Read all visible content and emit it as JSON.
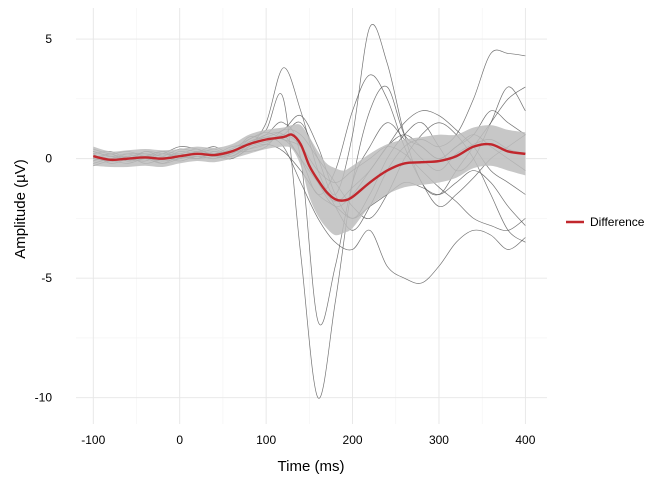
{
  "chart_data": {
    "type": "line",
    "xlabel": "Time (ms)",
    "ylabel": "Amplitude (µV)",
    "xlim": [
      -120,
      425
    ],
    "ylim": [
      -11.1,
      6.3
    ],
    "x_ticks": [
      -100,
      0,
      100,
      200,
      300,
      400
    ],
    "x_tick_labels": [
      "-100",
      "0",
      "100",
      "200",
      "300",
      "400"
    ],
    "y_ticks": [
      5,
      0,
      -5,
      -10
    ],
    "y_tick_labels": [
      "5",
      "0",
      "-5",
      "-10"
    ],
    "grid": true,
    "legend_position": "right",
    "colors": {
      "mean": "#c1272d",
      "ribbon": "#bdbdbd",
      "individual": "#5a5a5a",
      "grid_major": "#e6e6e6",
      "grid_minor": "#f3f3f3"
    },
    "series": [
      {
        "name": "Difference",
        "x": [
          -100,
          -80,
          -60,
          -40,
          -20,
          0,
          20,
          40,
          60,
          80,
          100,
          120,
          130,
          140,
          150,
          160,
          170,
          180,
          190,
          200,
          220,
          240,
          260,
          280,
          300,
          320,
          340,
          360,
          380,
          400
        ],
        "values": [
          0.1,
          -0.05,
          0.0,
          0.05,
          0.0,
          0.1,
          0.2,
          0.15,
          0.3,
          0.6,
          0.8,
          0.9,
          1.0,
          0.6,
          -0.3,
          -0.9,
          -1.4,
          -1.7,
          -1.75,
          -1.6,
          -1.0,
          -0.5,
          -0.2,
          -0.15,
          -0.1,
          0.1,
          0.5,
          0.6,
          0.3,
          0.2
        ],
        "ci_lower": [
          -0.3,
          -0.35,
          -0.35,
          -0.3,
          -0.35,
          -0.2,
          -0.1,
          -0.15,
          0.0,
          0.2,
          0.4,
          0.5,
          0.4,
          -0.3,
          -1.6,
          -2.4,
          -2.9,
          -3.2,
          -3.1,
          -2.9,
          -2.0,
          -1.5,
          -1.2,
          -1.1,
          -1.0,
          -0.8,
          -0.4,
          -0.3,
          -0.5,
          -0.7
        ],
        "ci_upper": [
          0.5,
          0.3,
          0.35,
          0.4,
          0.35,
          0.4,
          0.5,
          0.45,
          0.6,
          1.0,
          1.2,
          1.3,
          1.4,
          1.4,
          0.9,
          0.3,
          -0.2,
          -0.4,
          -0.5,
          -0.3,
          0.2,
          0.6,
          0.8,
          0.9,
          1.0,
          1.0,
          1.3,
          1.4,
          1.2,
          1.1
        ]
      }
    ],
    "individual_x": [
      -100,
      -80,
      -60,
      -40,
      -20,
      0,
      20,
      40,
      60,
      80,
      100,
      120,
      140,
      160,
      180,
      200,
      220,
      240,
      260,
      280,
      300,
      320,
      340,
      360,
      380,
      400
    ],
    "individual_series": [
      [
        0.3,
        0.1,
        0.2,
        0.0,
        0.3,
        0.2,
        0.4,
        0.1,
        0.2,
        0.8,
        1.2,
        2.5,
        -4.0,
        -10.0,
        -6.0,
        -1.0,
        2.0,
        3.0,
        1.0,
        0.5,
        0.0,
        0.5,
        1.0,
        2.0,
        1.5,
        1.0
      ],
      [
        0.0,
        0.2,
        -0.1,
        0.3,
        0.1,
        0.4,
        0.3,
        0.5,
        0.2,
        0.7,
        1.0,
        1.5,
        0.0,
        -6.8,
        -4.5,
        -1.0,
        0.5,
        1.5,
        0.8,
        0.0,
        -0.5,
        0.2,
        0.6,
        0.8,
        0.4,
        0.2
      ],
      [
        0.2,
        -0.2,
        0.0,
        0.1,
        -0.2,
        0.0,
        0.2,
        0.1,
        0.0,
        0.5,
        1.5,
        3.8,
        2.0,
        -0.5,
        -2.0,
        -3.0,
        -2.0,
        -0.5,
        0.5,
        0.8,
        0.5,
        1.0,
        2.5,
        4.4,
        4.4,
        4.3
      ],
      [
        -0.1,
        0.1,
        0.0,
        -0.1,
        0.2,
        0.1,
        0.0,
        0.3,
        0.2,
        0.9,
        0.8,
        1.0,
        1.5,
        0.0,
        -1.5,
        1.0,
        5.5,
        4.0,
        1.0,
        -1.0,
        -1.5,
        -0.5,
        0.5,
        1.5,
        2.5,
        3.0
      ],
      [
        0.4,
        0.2,
        0.3,
        0.1,
        0.2,
        0.5,
        0.4,
        0.2,
        0.5,
        0.6,
        0.9,
        0.5,
        -1.0,
        -2.5,
        -3.5,
        -3.8,
        -3.0,
        -4.5,
        -5.0,
        -5.2,
        -4.5,
        -3.5,
        -3.0,
        -3.2,
        -3.8,
        -3.3
      ],
      [
        -0.3,
        -0.1,
        -0.2,
        0.0,
        -0.1,
        0.0,
        0.1,
        0.0,
        0.3,
        0.4,
        0.6,
        1.0,
        0.5,
        -1.0,
        -2.0,
        -1.5,
        -0.5,
        0.5,
        1.5,
        2.0,
        1.8,
        1.2,
        0.5,
        -0.5,
        -1.0,
        -1.5
      ],
      [
        0.1,
        0.0,
        0.2,
        0.2,
        0.0,
        0.3,
        0.2,
        0.4,
        0.1,
        0.5,
        0.7,
        0.8,
        0.0,
        -1.5,
        -0.5,
        2.0,
        3.5,
        2.5,
        0.5,
        -1.0,
        -2.0,
        -1.5,
        -0.8,
        0.0,
        0.5,
        1.0
      ],
      [
        0.2,
        0.3,
        0.0,
        0.1,
        0.3,
        0.0,
        0.3,
        0.2,
        0.4,
        0.8,
        1.1,
        0.8,
        0.5,
        -0.5,
        -1.0,
        -0.5,
        0.0,
        0.5,
        0.2,
        -0.5,
        -1.2,
        -1.8,
        -2.5,
        -2.8,
        -3.0,
        -2.5
      ],
      [
        -0.2,
        0.0,
        0.1,
        -0.2,
        0.0,
        0.2,
        0.0,
        0.1,
        0.3,
        0.3,
        0.5,
        1.2,
        1.0,
        0.0,
        -1.0,
        -2.0,
        -2.5,
        -1.5,
        0.0,
        1.0,
        1.5,
        1.0,
        0.0,
        -1.5,
        -3.0,
        -3.5
      ],
      [
        0.0,
        -0.1,
        0.1,
        0.2,
        0.1,
        -0.1,
        0.1,
        0.0,
        0.2,
        0.7,
        0.9,
        1.2,
        1.8,
        0.5,
        -1.5,
        -2.5,
        -1.5,
        0.0,
        1.0,
        1.5,
        0.5,
        -0.5,
        0.0,
        1.5,
        3.0,
        2.0
      ],
      [
        0.3,
        0.1,
        0.0,
        0.3,
        0.2,
        0.1,
        0.3,
        0.3,
        0.1,
        0.6,
        1.0,
        1.0,
        0.0,
        -1.0,
        -1.8,
        -1.2,
        -0.5,
        0.5,
        1.0,
        0.5,
        0.0,
        0.5,
        1.0,
        0.5,
        0.0,
        -0.5
      ],
      [
        -0.1,
        0.2,
        -0.1,
        0.0,
        -0.2,
        0.1,
        0.0,
        0.2,
        0.0,
        0.4,
        0.6,
        0.3,
        -0.5,
        -1.5,
        -2.0,
        -2.5,
        -2.0,
        -1.5,
        -1.0,
        -1.2,
        -1.5,
        -1.0,
        -0.5,
        -1.0,
        -2.0,
        -2.8
      ]
    ]
  },
  "legend": {
    "items": [
      {
        "label": "Difference",
        "color": "#c1272d"
      }
    ]
  }
}
